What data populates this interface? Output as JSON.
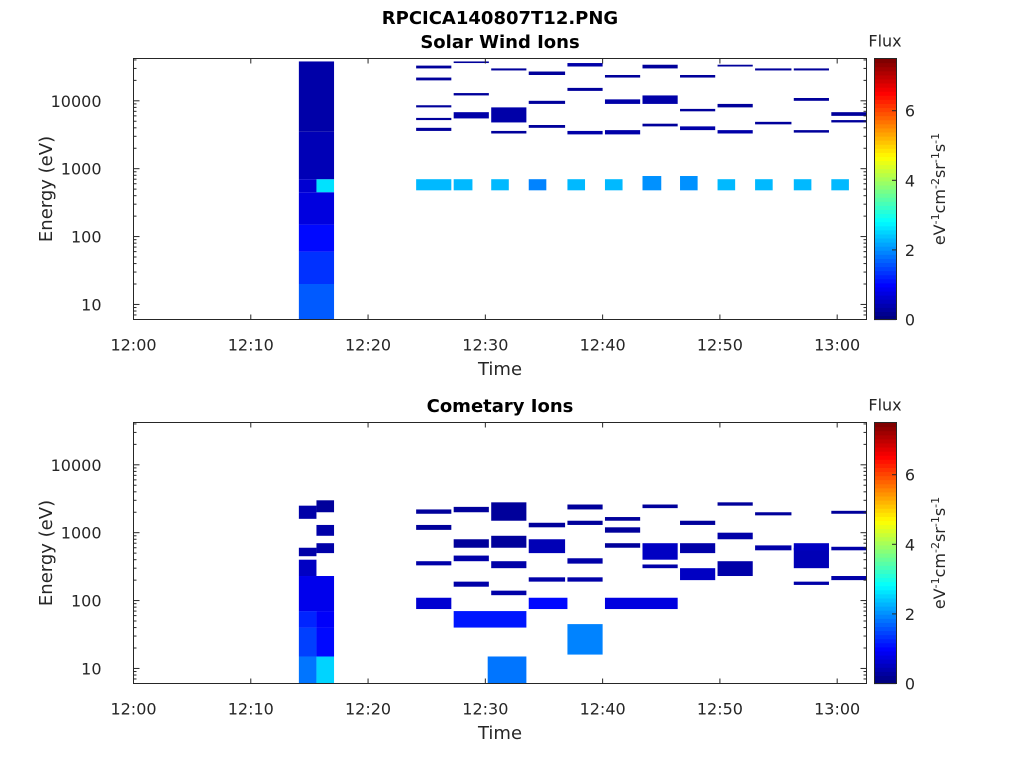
{
  "figure_title": "RPCICA140807T12.PNG",
  "colorbar": {
    "label": "Flux",
    "unit_parts": [
      "eV",
      "-1",
      "cm",
      "-2",
      "sr",
      "-1",
      "s",
      "-1"
    ],
    "ticks": [
      "0",
      "2",
      "4",
      "6"
    ],
    "range": [
      0,
      7.5
    ]
  },
  "chart_data": [
    {
      "type": "heatmap",
      "title": "Solar Wind Ions",
      "xlabel": "Time",
      "ylabel": "Energy (eV)",
      "x_ticks": [
        "12:00",
        "12:10",
        "12:20",
        "12:30",
        "12:40",
        "12:50",
        "13:00"
      ],
      "y_ticks": [
        "10",
        "100",
        "1000",
        "10000"
      ],
      "y_scale": "log",
      "xlim_minutes": [
        0,
        62.5
      ],
      "ylim": [
        6,
        42000
      ],
      "cells": [
        [
          14.1,
          17.1,
          6,
          20,
          1.6
        ],
        [
          14.1,
          17.1,
          20,
          60,
          1.3
        ],
        [
          14.1,
          17.1,
          60,
          150,
          1.0
        ],
        [
          14.1,
          17.1,
          150,
          450,
          0.7
        ],
        [
          15.6,
          17.1,
          450,
          700,
          2.6
        ],
        [
          14.1,
          15.6,
          450,
          700,
          0.6
        ],
        [
          14.1,
          17.1,
          700,
          3500,
          0.4
        ],
        [
          14.1,
          17.1,
          3500,
          38000,
          0.3
        ],
        [
          24.1,
          27.1,
          480,
          700,
          2.3
        ],
        [
          27.3,
          28.9,
          480,
          700,
          2.3
        ],
        [
          30.5,
          32.0,
          480,
          700,
          2.3
        ],
        [
          33.7,
          35.2,
          480,
          700,
          1.9
        ],
        [
          37.0,
          38.5,
          480,
          700,
          2.3
        ],
        [
          40.2,
          41.7,
          480,
          700,
          2.3
        ],
        [
          43.4,
          45.0,
          480,
          780,
          2.0
        ],
        [
          46.6,
          48.1,
          480,
          780,
          2.0
        ],
        [
          49.8,
          51.3,
          480,
          700,
          2.3
        ],
        [
          53.0,
          54.5,
          480,
          700,
          2.3
        ],
        [
          56.3,
          57.8,
          480,
          700,
          2.3
        ],
        [
          59.5,
          61.0,
          480,
          700,
          2.3
        ],
        [
          24.1,
          27.1,
          3600,
          4000,
          0.2
        ],
        [
          24.1,
          27.1,
          5200,
          5600,
          0.2
        ],
        [
          24.1,
          27.1,
          8000,
          8600,
          0.2
        ],
        [
          24.1,
          27.1,
          20000,
          22000,
          0.2
        ],
        [
          24.1,
          27.1,
          30000,
          33000,
          0.2
        ],
        [
          27.3,
          30.3,
          5500,
          6800,
          0.3
        ],
        [
          27.3,
          30.3,
          12000,
          13000,
          0.2
        ],
        [
          27.3,
          30.3,
          36000,
          38000,
          0.2
        ],
        [
          30.5,
          33.5,
          4800,
          8000,
          0.3
        ],
        [
          30.5,
          33.5,
          3300,
          3600,
          0.2
        ],
        [
          30.5,
          33.5,
          28000,
          30000,
          0.2
        ],
        [
          33.7,
          36.8,
          4000,
          4400,
          0.2
        ],
        [
          33.7,
          36.8,
          9000,
          10000,
          0.2
        ],
        [
          33.7,
          36.8,
          24000,
          27000,
          0.2
        ],
        [
          37.0,
          40.0,
          3200,
          3600,
          0.3
        ],
        [
          37.0,
          40.0,
          32000,
          36000,
          0.3
        ],
        [
          37.0,
          40.0,
          14000,
          15500,
          0.2
        ],
        [
          40.2,
          43.2,
          3200,
          3700,
          0.3
        ],
        [
          40.2,
          43.2,
          9000,
          10500,
          0.3
        ],
        [
          40.2,
          43.2,
          22000,
          24000,
          0.2
        ],
        [
          43.4,
          46.4,
          4200,
          4600,
          0.2
        ],
        [
          43.4,
          46.4,
          9000,
          12000,
          0.3
        ],
        [
          43.4,
          46.4,
          30000,
          34000,
          0.2
        ],
        [
          46.6,
          49.6,
          3700,
          4200,
          0.3
        ],
        [
          46.6,
          49.6,
          7000,
          7600,
          0.2
        ],
        [
          46.6,
          49.6,
          22000,
          24000,
          0.2
        ],
        [
          49.8,
          52.8,
          3300,
          3700,
          0.3
        ],
        [
          49.8,
          52.8,
          8000,
          9000,
          0.2
        ],
        [
          49.8,
          52.8,
          32000,
          34000,
          0.2
        ],
        [
          53.0,
          56.1,
          4500,
          4900,
          0.2
        ],
        [
          53.0,
          56.1,
          28000,
          30000,
          0.2
        ],
        [
          56.3,
          59.3,
          3400,
          3700,
          0.2
        ],
        [
          56.3,
          59.3,
          10000,
          11000,
          0.2
        ],
        [
          56.3,
          59.3,
          28000,
          30000,
          0.2
        ],
        [
          59.5,
          62.5,
          4800,
          5200,
          0.2
        ],
        [
          59.5,
          62.5,
          6000,
          6800,
          0.2
        ]
      ]
    },
    {
      "type": "heatmap",
      "title": "Cometary Ions",
      "xlabel": "Time",
      "ylabel": "Energy (eV)",
      "x_ticks": [
        "12:00",
        "12:10",
        "12:20",
        "12:30",
        "12:40",
        "12:50",
        "13:00"
      ],
      "y_ticks": [
        "10",
        "100",
        "1000",
        "10000"
      ],
      "y_scale": "log",
      "xlim_minutes": [
        0,
        62.5
      ],
      "ylim": [
        6,
        42000
      ],
      "cells": [
        [
          14.1,
          15.6,
          6,
          15,
          1.8
        ],
        [
          15.6,
          17.1,
          6,
          15,
          2.5
        ],
        [
          14.1,
          15.6,
          15,
          40,
          1.4
        ],
        [
          15.6,
          17.1,
          15,
          40,
          1.0
        ],
        [
          14.1,
          15.6,
          40,
          70,
          1.2
        ],
        [
          15.6,
          17.1,
          40,
          70,
          0.9
        ],
        [
          14.1,
          17.1,
          70,
          230,
          0.8
        ],
        [
          14.1,
          15.6,
          230,
          400,
          0.5
        ],
        [
          14.1,
          15.6,
          450,
          600,
          0.3
        ],
        [
          15.6,
          17.1,
          500,
          700,
          0.3
        ],
        [
          15.6,
          17.1,
          900,
          1300,
          0.3
        ],
        [
          14.1,
          15.6,
          1600,
          2500,
          0.3
        ],
        [
          15.6,
          17.1,
          2000,
          3000,
          0.2
        ],
        [
          24.1,
          27.1,
          75,
          110,
          0.6
        ],
        [
          27.3,
          33.5,
          40,
          70,
          1.1
        ],
        [
          30.2,
          33.5,
          6,
          15,
          1.8
        ],
        [
          33.7,
          37.0,
          75,
          110,
          1.0
        ],
        [
          37.0,
          40.0,
          16,
          45,
          1.9
        ],
        [
          40.2,
          46.4,
          75,
          110,
          0.7
        ],
        [
          24.1,
          27.1,
          330,
          380,
          0.3
        ],
        [
          24.1,
          27.1,
          1100,
          1300,
          0.2
        ],
        [
          24.1,
          27.1,
          1900,
          2200,
          0.2
        ],
        [
          27.3,
          30.3,
          380,
          460,
          0.3
        ],
        [
          27.3,
          30.3,
          600,
          800,
          0.2
        ],
        [
          27.3,
          30.3,
          2000,
          2400,
          0.2
        ],
        [
          27.3,
          30.3,
          160,
          190,
          0.3
        ],
        [
          30.5,
          33.5,
          600,
          900,
          0.2
        ],
        [
          30.5,
          33.5,
          1500,
          2800,
          0.2
        ],
        [
          30.5,
          33.5,
          120,
          140,
          0.3
        ],
        [
          30.5,
          33.5,
          300,
          380,
          0.3
        ],
        [
          33.7,
          36.8,
          500,
          800,
          0.4
        ],
        [
          33.7,
          36.8,
          1200,
          1400,
          0.2
        ],
        [
          33.7,
          36.8,
          190,
          220,
          0.3
        ],
        [
          37.0,
          40.0,
          350,
          420,
          0.3
        ],
        [
          37.0,
          40.0,
          1300,
          1500,
          0.2
        ],
        [
          37.0,
          40.0,
          2200,
          2600,
          0.2
        ],
        [
          37.0,
          40.0,
          190,
          220,
          0.3
        ],
        [
          40.2,
          43.2,
          1000,
          1200,
          0.2
        ],
        [
          40.2,
          43.2,
          1500,
          1700,
          0.2
        ],
        [
          40.2,
          43.2,
          600,
          700,
          0.2
        ],
        [
          43.4,
          46.4,
          400,
          700,
          0.5
        ],
        [
          43.4,
          46.4,
          2300,
          2600,
          0.2
        ],
        [
          43.4,
          46.4,
          300,
          340,
          0.3
        ],
        [
          46.6,
          49.6,
          500,
          700,
          0.3
        ],
        [
          46.6,
          49.6,
          200,
          300,
          0.5
        ],
        [
          46.6,
          49.6,
          1300,
          1500,
          0.2
        ],
        [
          49.8,
          52.8,
          800,
          1000,
          0.3
        ],
        [
          49.8,
          52.8,
          2500,
          2800,
          0.2
        ],
        [
          49.8,
          52.8,
          230,
          380,
          0.3
        ],
        [
          53.0,
          56.1,
          550,
          650,
          0.3
        ],
        [
          53.0,
          56.1,
          1800,
          2000,
          0.2
        ],
        [
          56.3,
          59.3,
          300,
          600,
          0.4
        ],
        [
          56.3,
          59.3,
          170,
          190,
          0.3
        ],
        [
          56.3,
          59.3,
          550,
          700,
          0.5
        ],
        [
          59.5,
          62.5,
          200,
          230,
          0.3
        ],
        [
          59.5,
          62.5,
          1900,
          2100,
          0.2
        ],
        [
          59.5,
          62.5,
          550,
          620,
          0.3
        ]
      ]
    }
  ]
}
